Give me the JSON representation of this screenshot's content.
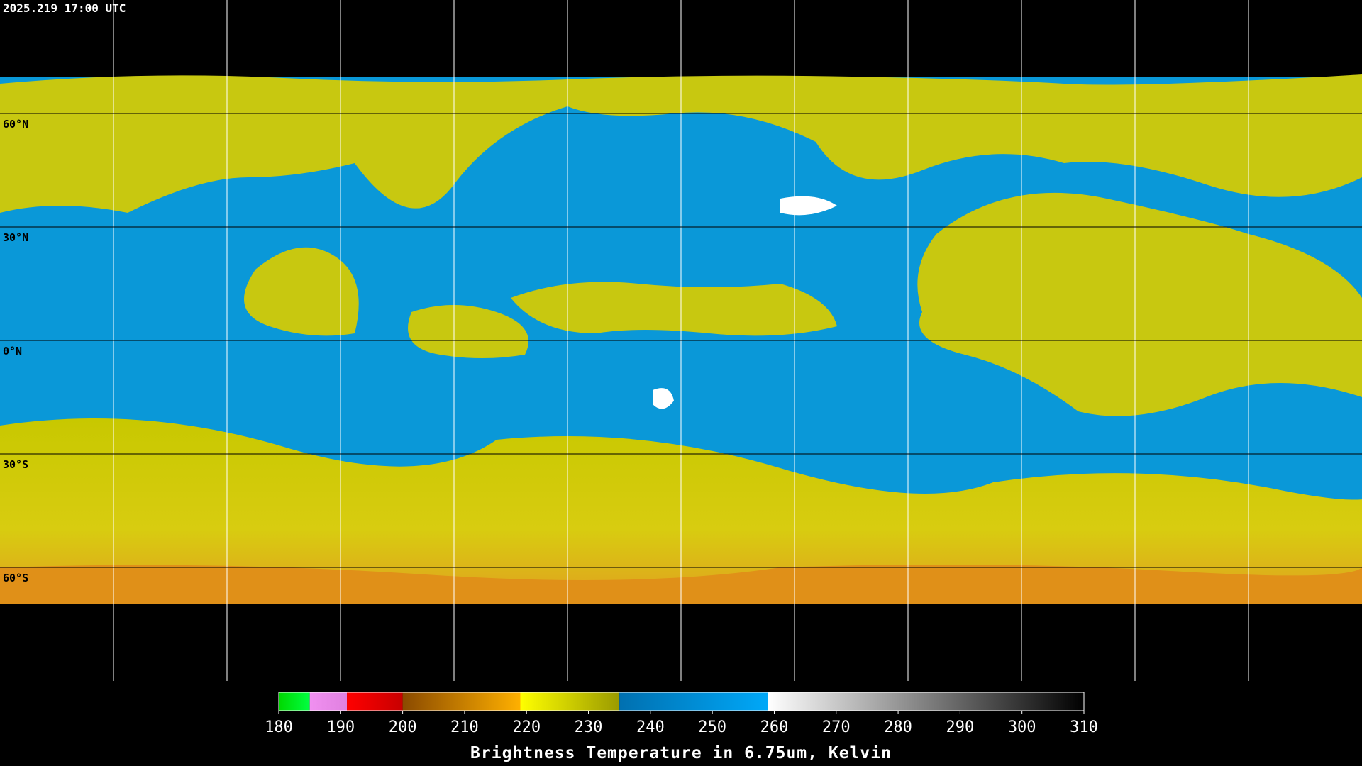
{
  "timestamp": "2025.219 17:00 UTC",
  "latitude_labels": [
    "60°N",
    "30°N",
    "0°N",
    "30°S",
    "60°S"
  ],
  "colorbar": {
    "label": "Brightness Temperature in 6.75um, Kelvin",
    "range": [
      180,
      310
    ],
    "ticks": [
      180,
      190,
      200,
      210,
      220,
      230,
      240,
      250,
      260,
      270,
      280,
      290,
      300,
      310
    ],
    "segments": [
      {
        "range": [
          180,
          185
        ],
        "colors": [
          "#00d800",
          "#00ff40"
        ]
      },
      {
        "range": [
          185,
          191
        ],
        "colors": [
          "#f090f0",
          "#e080e0"
        ]
      },
      {
        "range": [
          191,
          200
        ],
        "colors": [
          "#ff0000",
          "#c80000"
        ]
      },
      {
        "range": [
          200,
          219
        ],
        "colors": [
          "#8a4a00",
          "#ffb000"
        ]
      },
      {
        "range": [
          219,
          235
        ],
        "colors": [
          "#ffff00",
          "#9a9a00"
        ]
      },
      {
        "range": [
          235,
          259
        ],
        "colors": [
          "#0070b0",
          "#00a8f8"
        ]
      },
      {
        "range": [
          259,
          310
        ],
        "colors": [
          "#ffffff",
          "#000000"
        ]
      }
    ]
  }
}
